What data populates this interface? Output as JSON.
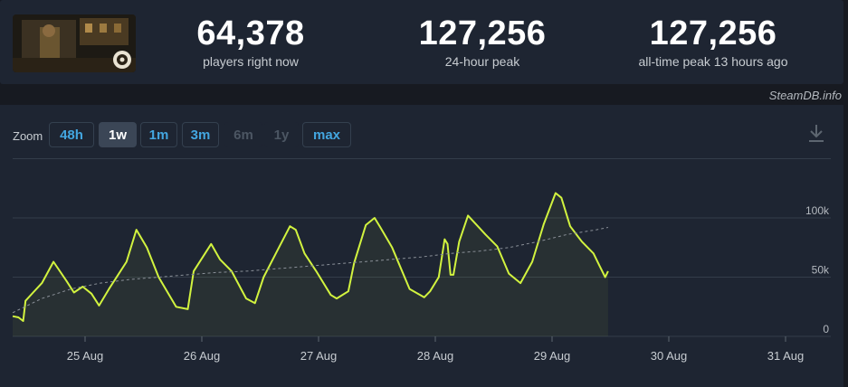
{
  "stats": [
    {
      "value": "64,378",
      "label": "players right now"
    },
    {
      "value": "127,256",
      "label": "24-hour peak"
    },
    {
      "value": "127,256",
      "label": "all-time peak 13 hours ago"
    }
  ],
  "credit": "SteamDB.info",
  "zoom": {
    "label": "Zoom",
    "options": [
      "48h",
      "1w",
      "1m",
      "3m",
      "6m",
      "1y",
      "max"
    ],
    "active": "1w",
    "disabled": [
      "6m",
      "1y"
    ]
  },
  "icons": {
    "download": "download-icon",
    "thumbnail": "game-thumbnail"
  },
  "colors": {
    "line": "#d2f33f",
    "average": "#8a9098",
    "background": "#1e2532"
  },
  "chart_data": {
    "type": "line",
    "x_labels": [
      "25 Aug",
      "26 Aug",
      "27 Aug",
      "28 Aug",
      "29 Aug",
      "30 Aug",
      "31 Aug"
    ],
    "y_labels": [
      "0",
      "50k",
      "100k"
    ],
    "ylim": [
      0,
      140000
    ],
    "series": [
      {
        "values": [
          [
            0,
            17000
          ],
          [
            0.1,
            16000
          ],
          [
            0.18,
            13000
          ],
          [
            0.22,
            30000
          ],
          [
            0.35,
            37000
          ],
          [
            0.5,
            45000
          ],
          [
            0.7,
            63000
          ],
          [
            0.92,
            47000
          ],
          [
            1.05,
            37000
          ],
          [
            1.2,
            42000
          ],
          [
            1.35,
            36000
          ],
          [
            1.48,
            26000
          ],
          [
            1.65,
            40000
          ],
          [
            1.95,
            63000
          ],
          [
            2.12,
            90000
          ],
          [
            2.3,
            75000
          ],
          [
            2.5,
            50000
          ],
          [
            2.8,
            25000
          ],
          [
            3.0,
            23000
          ],
          [
            3.1,
            55000
          ],
          [
            3.4,
            78000
          ],
          [
            3.55,
            65000
          ],
          [
            3.75,
            55000
          ],
          [
            4.0,
            32000
          ],
          [
            4.15,
            28000
          ],
          [
            4.3,
            50000
          ],
          [
            4.55,
            74000
          ],
          [
            4.75,
            93000
          ],
          [
            4.85,
            90000
          ],
          [
            5.0,
            70000
          ],
          [
            5.2,
            55000
          ],
          [
            5.45,
            35000
          ],
          [
            5.55,
            32000
          ],
          [
            5.75,
            38000
          ],
          [
            5.85,
            62000
          ],
          [
            6.05,
            94000
          ],
          [
            6.2,
            100000
          ],
          [
            6.3,
            92000
          ],
          [
            6.5,
            75000
          ],
          [
            6.8,
            40000
          ],
          [
            7.05,
            33000
          ],
          [
            7.15,
            38000
          ],
          [
            7.3,
            50000
          ],
          [
            7.4,
            82000
          ],
          [
            7.45,
            78000
          ],
          [
            7.5,
            52000
          ],
          [
            7.55,
            52000
          ],
          [
            7.65,
            80000
          ],
          [
            7.8,
            102000
          ],
          [
            8.1,
            86000
          ],
          [
            8.3,
            76000
          ],
          [
            8.5,
            53000
          ],
          [
            8.7,
            45000
          ],
          [
            8.9,
            63000
          ],
          [
            9.1,
            95000
          ],
          [
            9.3,
            121000
          ],
          [
            9.4,
            117000
          ],
          [
            9.55,
            93000
          ],
          [
            9.75,
            80000
          ],
          [
            9.95,
            70000
          ],
          [
            10.05,
            60000
          ],
          [
            10.15,
            50000
          ],
          [
            10.2,
            55000
          ]
        ]
      },
      {
        "values": [
          [
            0,
            20000
          ],
          [
            0.5,
            32000
          ],
          [
            1.0,
            40000
          ],
          [
            1.5,
            45000
          ],
          [
            2.0,
            48000
          ],
          [
            2.5,
            50000
          ],
          [
            3.0,
            52000
          ],
          [
            3.5,
            54000
          ],
          [
            4.0,
            55000
          ],
          [
            4.5,
            57000
          ],
          [
            5.0,
            59000
          ],
          [
            5.5,
            61000
          ],
          [
            6.0,
            63000
          ],
          [
            6.5,
            65000
          ],
          [
            7.0,
            67000
          ],
          [
            7.5,
            70000
          ],
          [
            8.0,
            72000
          ],
          [
            8.5,
            75000
          ],
          [
            9.0,
            80000
          ],
          [
            9.5,
            86000
          ],
          [
            10.0,
            90000
          ],
          [
            10.2,
            92000
          ]
        ]
      }
    ]
  }
}
